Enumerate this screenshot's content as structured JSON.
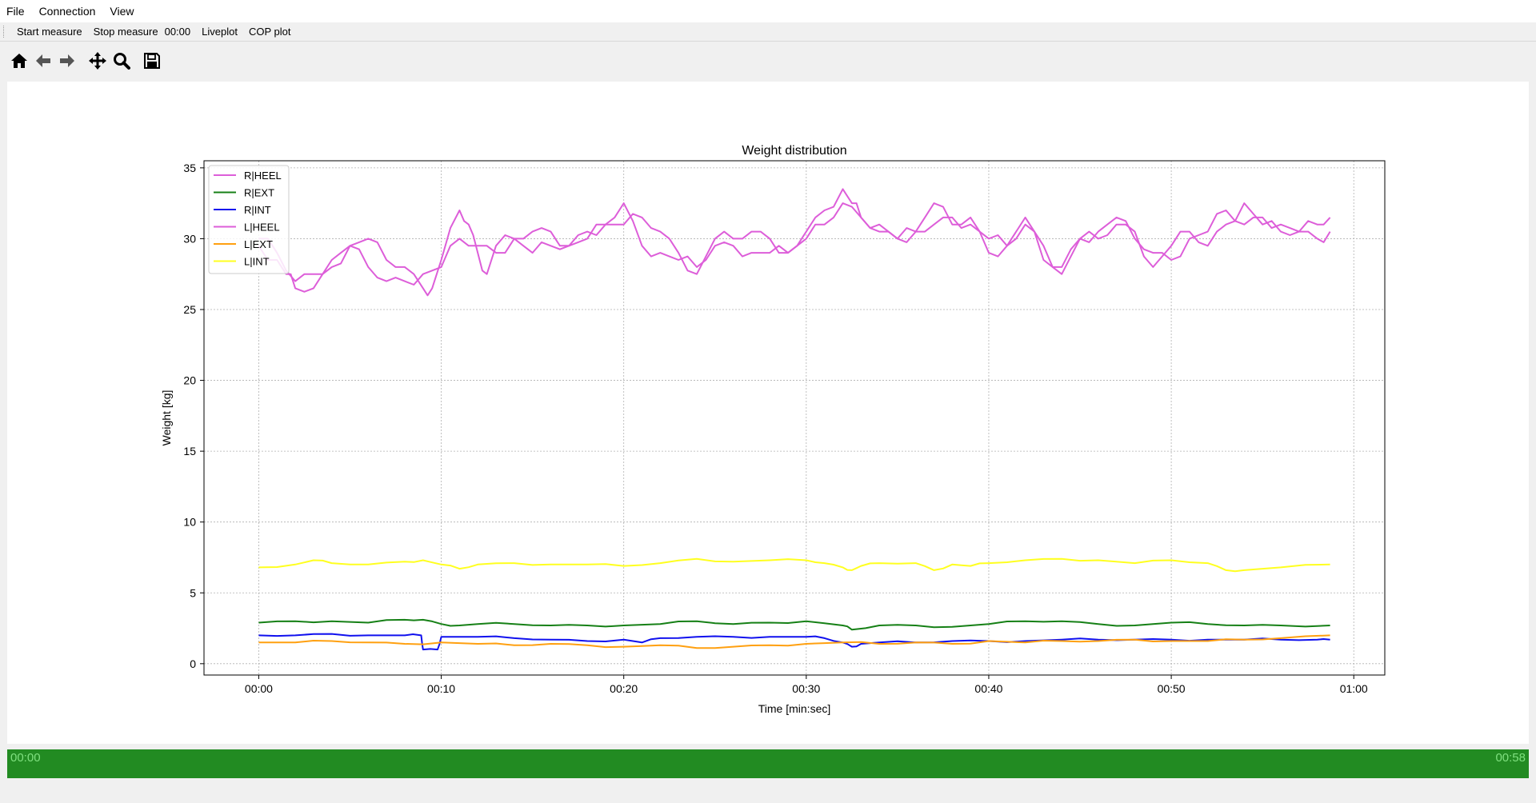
{
  "menu": {
    "file": "File",
    "connection": "Connection",
    "view": "View"
  },
  "actions": {
    "start": "Start measure",
    "stop": "Stop measure",
    "timer": "00:00",
    "liveplot": "Liveplot",
    "cop": "COP plot"
  },
  "toolbar": {
    "icons": [
      "home-icon",
      "back-arrow-icon",
      "forward-arrow-icon",
      "pan-icon",
      "zoom-icon",
      "save-icon"
    ]
  },
  "status": {
    "elapsed": "00:00",
    "total": "00:58",
    "progress": 1.0,
    "color": "#228b22",
    "text_color": "#7fe07f"
  },
  "chart_data": {
    "type": "line",
    "title": "Weight distribution",
    "xlabel": "Time [min:sec]",
    "ylabel": "Weight [kg]",
    "xlim": [
      -3,
      61.7
    ],
    "ylim": [
      -0.8,
      35.5
    ],
    "xticks": [
      0,
      10,
      20,
      30,
      40,
      50,
      60
    ],
    "xtick_labels": [
      "00:00",
      "00:10",
      "00:20",
      "00:30",
      "00:40",
      "00:50",
      "01:00"
    ],
    "yticks": [
      0,
      5,
      10,
      15,
      20,
      25,
      30,
      35
    ],
    "ytick_labels": [
      "0",
      "5",
      "10",
      "15",
      "20",
      "25",
      "30",
      "35"
    ],
    "grid": true,
    "legend_position": "upper-left",
    "series": [
      {
        "name": "R|HEEL",
        "color": "#dd5ed9",
        "x": [
          0,
          1,
          1.5,
          2,
          3,
          4,
          5,
          6,
          7,
          8,
          9,
          9.5,
          10,
          11,
          11.5,
          12,
          12.5,
          13,
          14,
          15,
          16,
          17,
          18,
          19,
          20,
          21,
          22,
          23,
          24,
          25,
          26,
          27,
          28,
          29,
          30,
          31,
          32,
          32.5,
          33,
          34,
          35,
          36,
          37,
          38,
          39,
          40,
          41,
          42,
          43,
          44,
          45,
          46,
          47,
          48,
          49,
          50,
          51,
          52,
          53,
          54,
          55,
          56,
          57,
          58,
          58.7
        ],
        "values": [
          29.5,
          28.5,
          27.5,
          26.5,
          26.5,
          28,
          29.5,
          30,
          28.5,
          28,
          26.5,
          26.5,
          28.5,
          32,
          31,
          29,
          27.5,
          29.5,
          30,
          30.5,
          30.5,
          29.5,
          30,
          31,
          32.5,
          29.5,
          29,
          28.5,
          28,
          29.5,
          29.5,
          29,
          29,
          29,
          30.5,
          32,
          33.5,
          32.5,
          31.5,
          30.5,
          30,
          30.5,
          32.5,
          31,
          31.5,
          29,
          29.5,
          31.5,
          28.5,
          28,
          30,
          30.5,
          31.5,
          30,
          29,
          28.5,
          30,
          30.5,
          32,
          31,
          31.5,
          31,
          30.5,
          31,
          31.5
        ]
      },
      {
        "name": "R|EXT",
        "color": "#168016",
        "x": [
          0,
          2,
          4,
          6,
          8,
          9,
          10,
          11,
          12,
          14,
          16,
          18,
          20,
          22,
          24,
          26,
          28,
          30,
          32,
          32.5,
          34,
          36,
          38,
          40,
          42,
          44,
          46,
          48,
          50,
          52,
          54,
          56,
          58.7
        ],
        "values": [
          2.9,
          3.0,
          3.0,
          2.9,
          3.1,
          3.1,
          2.8,
          2.7,
          2.8,
          2.8,
          2.7,
          2.7,
          2.7,
          2.8,
          3.0,
          2.8,
          2.9,
          3.0,
          2.7,
          2.4,
          2.7,
          2.7,
          2.6,
          2.8,
          3.0,
          3.0,
          2.8,
          2.7,
          2.9,
          2.8,
          2.7,
          2.7,
          2.7
        ]
      },
      {
        "name": "R|INT",
        "color": "#1010ee",
        "x": [
          0,
          2,
          4,
          6,
          8,
          8.9,
          9,
          9.8,
          10,
          12,
          14,
          16,
          18,
          20,
          21,
          22,
          24,
          26,
          28,
          30,
          31,
          32,
          32.5,
          33,
          34,
          36,
          38,
          40,
          42,
          44,
          46,
          48,
          50,
          52,
          54,
          56,
          58,
          58.7
        ],
        "values": [
          2.0,
          2.0,
          2.1,
          2.0,
          2.0,
          2.0,
          1.0,
          1.0,
          1.9,
          1.9,
          1.8,
          1.7,
          1.6,
          1.7,
          1.5,
          1.8,
          1.9,
          1.9,
          1.9,
          1.9,
          1.8,
          1.5,
          1.2,
          1.4,
          1.5,
          1.5,
          1.6,
          1.6,
          1.6,
          1.7,
          1.7,
          1.7,
          1.7,
          1.7,
          1.7,
          1.7,
          1.7,
          1.7
        ]
      },
      {
        "name": "L|HEEL",
        "color": "#dd5ed9",
        "x": [
          0,
          1,
          2,
          3,
          4,
          5,
          6,
          7,
          8,
          9,
          10,
          11,
          12,
          13,
          14,
          15,
          16,
          17,
          18,
          19,
          20,
          21,
          22,
          23,
          24,
          25,
          26,
          27,
          28,
          29,
          30,
          31,
          32,
          33,
          34,
          35,
          36,
          37,
          38,
          39,
          40,
          41,
          42,
          43,
          44,
          45,
          46,
          47,
          48,
          49,
          50,
          51,
          52,
          53,
          54,
          55,
          56,
          57,
          58,
          58.7
        ],
        "values": [
          30,
          29,
          27,
          27.5,
          28.5,
          29.5,
          28,
          27,
          27,
          27.5,
          28,
          30,
          29.5,
          29,
          30,
          29,
          29.5,
          29.5,
          30.5,
          31,
          31,
          31.5,
          30.5,
          29,
          27.5,
          30,
          30,
          30.5,
          30,
          29,
          30,
          31,
          32.5,
          31.5,
          31,
          30,
          30.5,
          31,
          31.5,
          31,
          30,
          29.5,
          31,
          29.5,
          27.5,
          30,
          30,
          31,
          30.5,
          28,
          29.5,
          30.5,
          29.5,
          31,
          32.5,
          31,
          30.5,
          30.5,
          30,
          30.5
        ]
      },
      {
        "name": "L|EXT",
        "color": "#ffa010",
        "x": [
          0,
          2,
          4,
          6,
          8,
          10,
          12,
          14,
          16,
          18,
          20,
          22,
          24,
          26,
          28,
          30,
          32,
          34,
          36,
          38,
          40,
          42,
          44,
          46,
          48,
          50,
          52,
          54,
          56,
          58.7
        ],
        "values": [
          1.5,
          1.5,
          1.6,
          1.5,
          1.4,
          1.5,
          1.4,
          1.3,
          1.4,
          1.3,
          1.2,
          1.3,
          1.1,
          1.2,
          1.3,
          1.4,
          1.5,
          1.4,
          1.5,
          1.4,
          1.6,
          1.5,
          1.6,
          1.6,
          1.7,
          1.6,
          1.6,
          1.7,
          1.8,
          2.0
        ]
      },
      {
        "name": "L|INT",
        "color": "#ffff20",
        "x": [
          0,
          2,
          3,
          4,
          6,
          8,
          9,
          10,
          11,
          12,
          14,
          16,
          18,
          20,
          22,
          24,
          26,
          28,
          30,
          31,
          32,
          32.5,
          33,
          34,
          36,
          37,
          38,
          39,
          40,
          42,
          44,
          46,
          48,
          50,
          52,
          53,
          54,
          56,
          58.7
        ],
        "values": [
          6.8,
          7.0,
          7.3,
          7.1,
          7.0,
          7.2,
          7.3,
          7.0,
          6.7,
          7.0,
          7.1,
          7.0,
          7.0,
          6.9,
          7.1,
          7.4,
          7.2,
          7.3,
          7.3,
          7.1,
          6.8,
          6.6,
          6.9,
          7.1,
          7.1,
          6.6,
          7.0,
          6.9,
          7.1,
          7.3,
          7.4,
          7.3,
          7.1,
          7.3,
          7.1,
          6.6,
          6.6,
          6.8,
          7.0
        ]
      }
    ]
  }
}
